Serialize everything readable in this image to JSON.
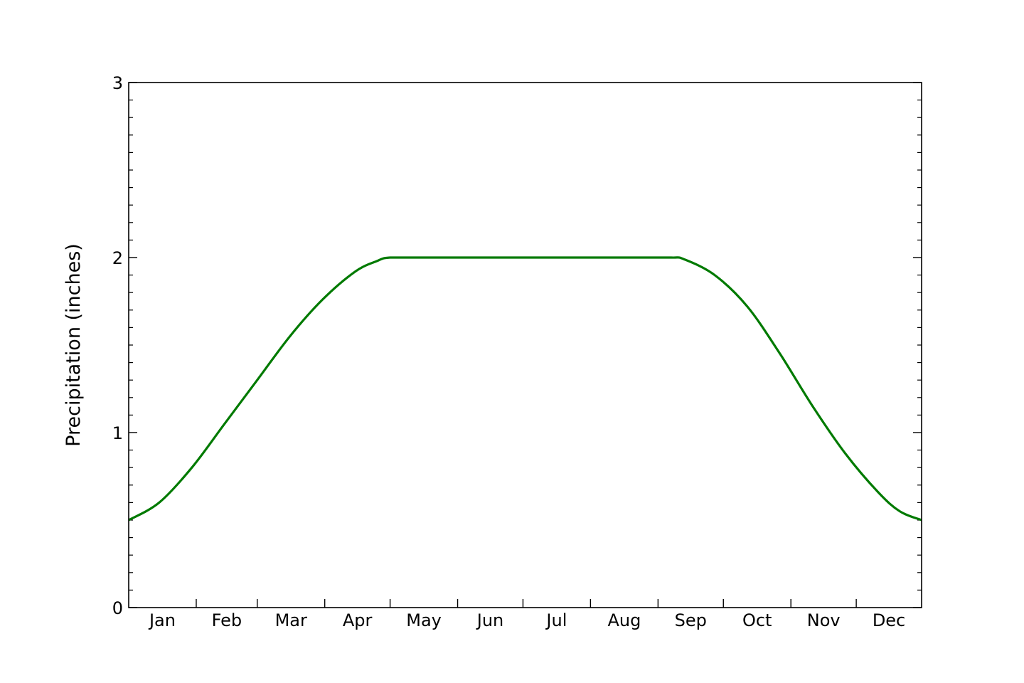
{
  "chart_data": {
    "type": "line",
    "title": "",
    "xlabel": "",
    "ylabel": "Precipitation (inches)",
    "xlim": [
      1,
      365
    ],
    "ylim": [
      0,
      3
    ],
    "yticks": [
      0,
      1,
      2,
      3
    ],
    "y_minor_step": 0.1,
    "grid": false,
    "legend": "none",
    "months": [
      {
        "label": "Jan",
        "start": 1,
        "end": 32
      },
      {
        "label": "Feb",
        "start": 32,
        "end": 60
      },
      {
        "label": "Mar",
        "start": 60,
        "end": 91
      },
      {
        "label": "Apr",
        "start": 91,
        "end": 121
      },
      {
        "label": "May",
        "start": 121,
        "end": 152
      },
      {
        "label": "Jun",
        "start": 152,
        "end": 182
      },
      {
        "label": "Jul",
        "start": 182,
        "end": 213
      },
      {
        "label": "Aug",
        "start": 213,
        "end": 244
      },
      {
        "label": "Sep",
        "start": 244,
        "end": 274
      },
      {
        "label": "Oct",
        "start": 274,
        "end": 305
      },
      {
        "label": "Nov",
        "start": 305,
        "end": 335
      },
      {
        "label": "Dec",
        "start": 335,
        "end": 365
      }
    ],
    "series": [
      {
        "color": "#007a00",
        "x": [
          1,
          15,
          30,
          45,
          60,
          75,
          90,
          105,
          115,
          121,
          140,
          170,
          200,
          230,
          250,
          256,
          270,
          285,
          300,
          315,
          330,
          345,
          355,
          365
        ],
        "y": [
          0.5,
          0.6,
          0.8,
          1.05,
          1.3,
          1.55,
          1.76,
          1.92,
          1.98,
          2.0,
          2.0,
          2.0,
          2.0,
          2.0,
          2.0,
          1.99,
          1.9,
          1.72,
          1.45,
          1.15,
          0.88,
          0.66,
          0.55,
          0.5
        ]
      }
    ]
  }
}
